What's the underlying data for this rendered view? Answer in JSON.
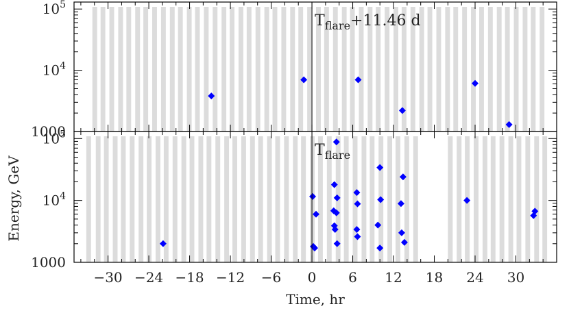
{
  "chart_data": {
    "type": "scatter",
    "xlabel": "Time, hr",
    "ylabel": "Energy, GeV",
    "x_ticks": [
      -30,
      -24,
      -18,
      -12,
      -6,
      0,
      6,
      12,
      18,
      24,
      30
    ],
    "x_tick_labels": [
      "−30",
      "−24",
      "−18",
      "−12",
      "−6",
      "0",
      "6",
      "12",
      "18",
      "24",
      "30"
    ],
    "xlim": [
      -35,
      36
    ],
    "y_scale": "log",
    "ylim": [
      1000,
      130000
    ],
    "y_tick_labels": [
      {
        "value": 1000,
        "base": "1000",
        "exp": ""
      },
      {
        "value": 10000,
        "base": "10",
        "exp": "4"
      },
      {
        "value": 100000,
        "base": "10",
        "exp": "5"
      }
    ],
    "point_color": "#0000ff",
    "band_color": "#dcdcdc",
    "panels": [
      {
        "label_main": "T",
        "label_sub": "flare",
        "label_suffix": "+11.46  d",
        "bands": [
          [
            -32.3,
            -31.6
          ],
          [
            -31.1,
            -30.4
          ],
          [
            -29.8,
            -29.1
          ],
          [
            -28.5,
            -27.8
          ],
          [
            -27.3,
            -26.6
          ],
          [
            -26.0,
            -25.3
          ],
          [
            -24.8,
            -24.1
          ],
          [
            -23.5,
            -22.8
          ],
          [
            -22.2,
            -21.5
          ],
          [
            -20.9,
            -20.2
          ],
          [
            -19.7,
            -19.0
          ],
          [
            -18.4,
            -17.7
          ],
          [
            -17.2,
            -16.5
          ],
          [
            -15.9,
            -15.2
          ],
          [
            -14.6,
            -13.9
          ],
          [
            -13.3,
            -12.6
          ],
          [
            -12.1,
            -11.4
          ],
          [
            -10.8,
            -10.1
          ],
          [
            -9.6,
            -8.9
          ],
          [
            -8.3,
            -7.6
          ],
          [
            -7.0,
            -6.3
          ],
          [
            -5.8,
            -5.1
          ],
          [
            -4.5,
            -3.8
          ],
          [
            -3.2,
            -2.5
          ],
          [
            -2.0,
            -1.3
          ],
          [
            -0.7,
            0.0
          ],
          [
            0.6,
            1.3
          ],
          [
            1.8,
            2.5
          ],
          [
            3.1,
            3.8
          ],
          [
            4.4,
            5.1
          ],
          [
            5.6,
            6.3
          ],
          [
            6.9,
            7.6
          ],
          [
            8.2,
            8.9
          ],
          [
            9.4,
            10.1
          ],
          [
            10.7,
            11.4
          ],
          [
            12.0,
            12.7
          ],
          [
            13.2,
            13.9
          ],
          [
            14.5,
            15.2
          ],
          [
            15.8,
            16.5
          ],
          [
            17.0,
            17.7
          ],
          [
            18.3,
            19.0
          ],
          [
            19.6,
            20.3
          ],
          [
            20.8,
            21.5
          ],
          [
            22.1,
            22.8
          ],
          [
            23.4,
            24.1
          ],
          [
            24.6,
            25.3
          ],
          [
            25.9,
            26.6
          ],
          [
            27.2,
            27.9
          ],
          [
            28.4,
            29.1
          ],
          [
            29.7,
            30.4
          ],
          [
            31.0,
            31.7
          ],
          [
            32.2,
            32.9
          ],
          [
            33.5,
            34.2
          ]
        ],
        "points": [
          {
            "x": -14.8,
            "y": 3800
          },
          {
            "x": -1.2,
            "y": 7000
          },
          {
            "x": 6.8,
            "y": 7000
          },
          {
            "x": 13.3,
            "y": 2200
          },
          {
            "x": 24.0,
            "y": 6100
          },
          {
            "x": 29.0,
            "y": 1300
          }
        ]
      },
      {
        "label_main": "T",
        "label_sub": "flare",
        "label_suffix": "",
        "bands": [
          [
            -33.2,
            -32.5
          ],
          [
            -31.8,
            -31.1
          ],
          [
            -30.6,
            -29.9
          ],
          [
            -29.3,
            -28.6
          ],
          [
            -28.1,
            -27.4
          ],
          [
            -26.8,
            -26.1
          ],
          [
            -25.5,
            -24.8
          ],
          [
            -24.3,
            -23.6
          ],
          [
            -23.0,
            -22.3
          ],
          [
            -21.8,
            -21.1
          ],
          [
            -20.5,
            -19.8
          ],
          [
            -19.2,
            -18.5
          ],
          [
            -18.0,
            -17.3
          ],
          [
            -16.7,
            -16.0
          ],
          [
            -15.5,
            -14.8
          ],
          [
            -14.2,
            -13.5
          ],
          [
            -12.9,
            -12.2
          ],
          [
            -11.7,
            -11.0
          ],
          [
            -10.4,
            -9.7
          ],
          [
            -9.1,
            -8.4
          ],
          [
            -7.9,
            -7.2
          ],
          [
            -6.6,
            -5.9
          ],
          [
            -5.4,
            -4.7
          ],
          [
            -4.1,
            -3.4
          ],
          [
            -2.8,
            -2.1
          ],
          [
            -1.6,
            -0.9
          ],
          [
            -0.3,
            0.4
          ],
          [
            0.9,
            1.6
          ],
          [
            2.2,
            2.9
          ],
          [
            3.5,
            4.2
          ],
          [
            4.7,
            5.4
          ],
          [
            6.0,
            6.7
          ],
          [
            7.3,
            8.0
          ],
          [
            8.5,
            9.2
          ],
          [
            9.8,
            10.5
          ],
          [
            11.1,
            11.8
          ],
          [
            12.3,
            13.0
          ],
          [
            13.6,
            14.3
          ],
          [
            14.9,
            15.6
          ],
          [
            20.0,
            20.7
          ],
          [
            21.3,
            22.0
          ],
          [
            22.5,
            23.2
          ],
          [
            23.8,
            24.5
          ],
          [
            25.1,
            25.8
          ],
          [
            26.3,
            27.0
          ],
          [
            27.6,
            28.3
          ],
          [
            28.9,
            29.6
          ],
          [
            30.1,
            30.8
          ],
          [
            31.4,
            32.1
          ],
          [
            32.7,
            33.4
          ],
          [
            33.9,
            34.6
          ]
        ],
        "points": [
          {
            "x": -21.9,
            "y": 2000
          },
          {
            "x": 0.1,
            "y": 11600
          },
          {
            "x": 0.2,
            "y": 1800
          },
          {
            "x": 0.4,
            "y": 1700
          },
          {
            "x": 0.6,
            "y": 6000
          },
          {
            "x": 3.3,
            "y": 18000
          },
          {
            "x": 3.2,
            "y": 6800
          },
          {
            "x": 3.3,
            "y": 3900
          },
          {
            "x": 3.4,
            "y": 3400
          },
          {
            "x": 3.6,
            "y": 88000
          },
          {
            "x": 3.7,
            "y": 11000
          },
          {
            "x": 3.6,
            "y": 6300
          },
          {
            "x": 3.7,
            "y": 2000
          },
          {
            "x": 6.6,
            "y": 13400
          },
          {
            "x": 6.7,
            "y": 8800
          },
          {
            "x": 6.6,
            "y": 3400
          },
          {
            "x": 6.7,
            "y": 2600
          },
          {
            "x": 9.7,
            "y": 4000
          },
          {
            "x": 10.0,
            "y": 34000
          },
          {
            "x": 10.1,
            "y": 10300
          },
          {
            "x": 10.0,
            "y": 1700
          },
          {
            "x": 13.1,
            "y": 8900
          },
          {
            "x": 13.2,
            "y": 3000
          },
          {
            "x": 13.4,
            "y": 24000
          },
          {
            "x": 13.6,
            "y": 2100
          },
          {
            "x": 22.8,
            "y": 10000
          },
          {
            "x": 32.6,
            "y": 5700
          },
          {
            "x": 32.8,
            "y": 6700
          }
        ]
      }
    ]
  }
}
